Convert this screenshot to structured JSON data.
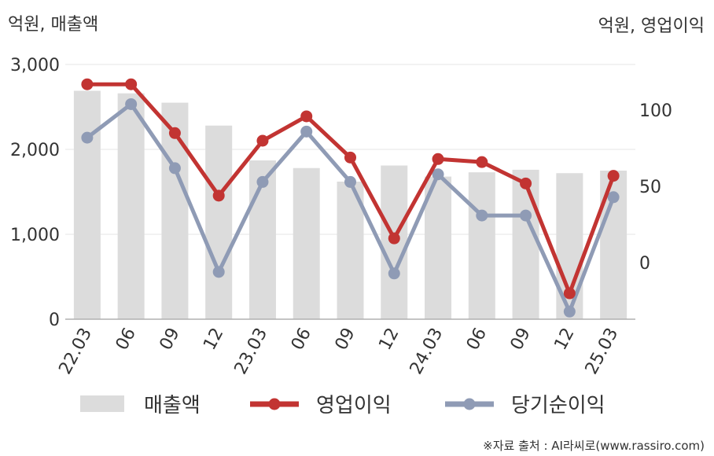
{
  "chart_data": {
    "type": "bar+line",
    "categories": [
      "22.03",
      "06",
      "09",
      "12",
      "23.03",
      "06",
      "09",
      "12",
      "24.03",
      "06",
      "09",
      "12",
      "25.03"
    ],
    "left_axis": {
      "label": "억원, 매출액",
      "ylim": [
        0,
        3000
      ],
      "ticks": [
        0,
        1000,
        2000,
        3000
      ],
      "tick_labels": [
        "0",
        "1,000",
        "2,000",
        "3,000"
      ]
    },
    "right_axis": {
      "label": "억원, 영업이익",
      "ylim": [
        -37,
        130
      ],
      "ticks": [
        0,
        50,
        100
      ],
      "tick_labels": [
        "0",
        "50",
        "100"
      ]
    },
    "series": [
      {
        "name": "매출액",
        "kind": "bar",
        "axis": "left",
        "color": "#dcdcdc",
        "values": [
          2690,
          2660,
          2550,
          2280,
          1870,
          1780,
          1620,
          1810,
          1680,
          1730,
          1760,
          1720,
          1750
        ]
      },
      {
        "name": "영업이익",
        "kind": "line",
        "axis": "right",
        "color": "#c23432",
        "values": [
          117,
          117,
          85,
          44,
          80,
          96,
          69,
          16,
          68,
          66,
          52,
          -20,
          57
        ]
      },
      {
        "name": "당기순이익",
        "kind": "line",
        "axis": "right",
        "color": "#8f9bb5",
        "values": [
          82,
          104,
          62,
          -6,
          53,
          86,
          53,
          -7,
          58,
          31,
          31,
          -32,
          43
        ]
      }
    ],
    "grid": true,
    "legend_position": "bottom"
  },
  "source_note": "※자료 출처 : AI라씨로(www.rassiro.com)"
}
